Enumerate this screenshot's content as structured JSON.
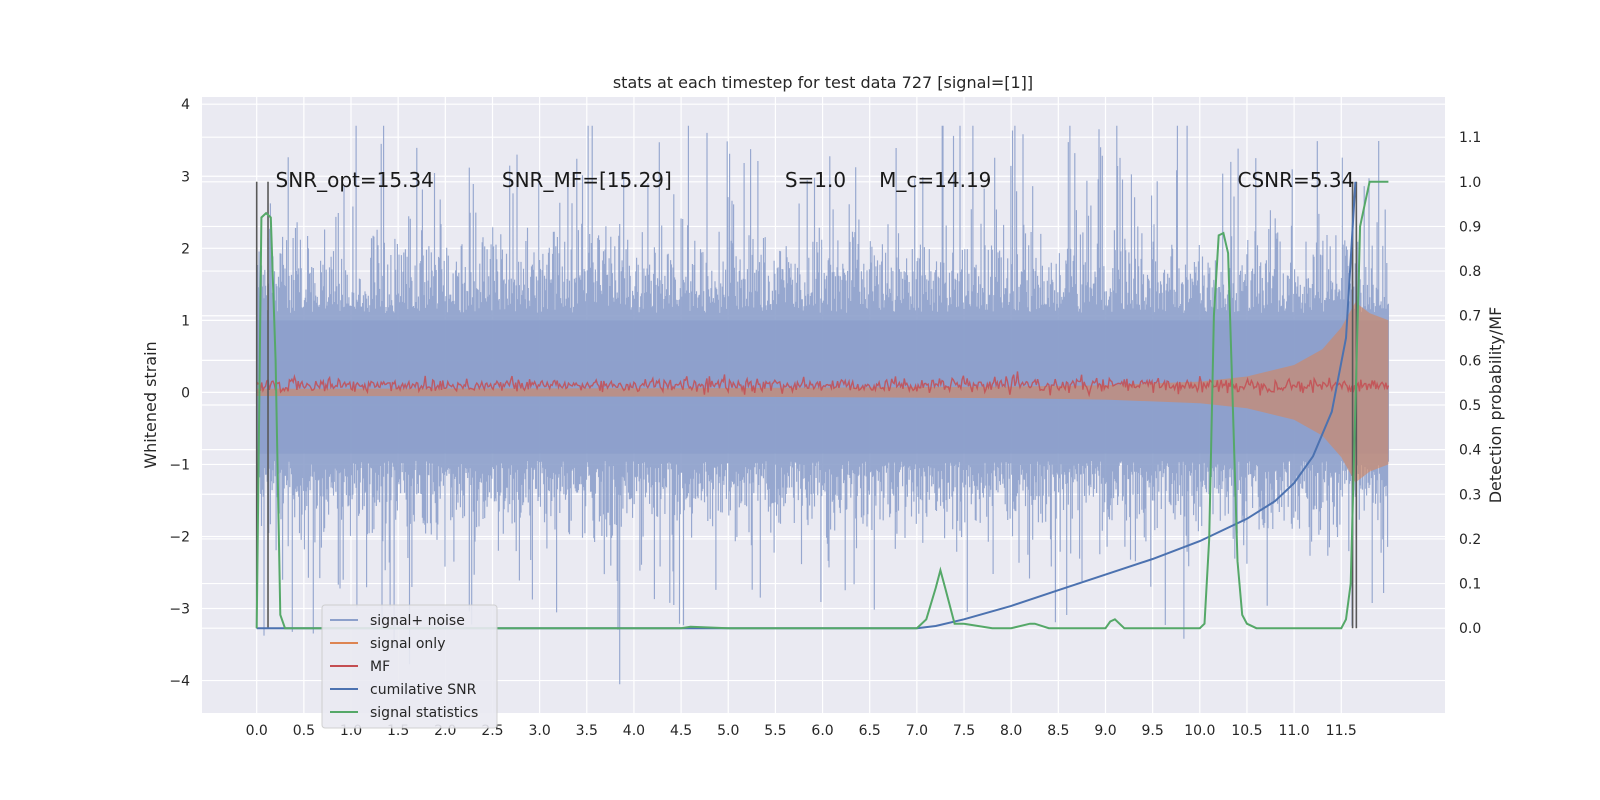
{
  "chart_data": {
    "type": "line",
    "title": "stats at each timestep for test data 727 [signal=[1]]",
    "xlabel": "",
    "ylabel": "Whitened strain",
    "y2label": "Detection probability/MF",
    "xlim": [
      -0.58,
      12.6
    ],
    "ylim": [
      -4.45,
      4.1
    ],
    "y2lim": [
      -0.19,
      1.19
    ],
    "x_ticks": [
      "0.0",
      "0.5",
      "1.0",
      "1.5",
      "2.0",
      "2.5",
      "3.0",
      "3.5",
      "4.0",
      "4.5",
      "5.0",
      "5.5",
      "6.0",
      "6.5",
      "7.0",
      "7.5",
      "8.0",
      "8.5",
      "9.0",
      "9.5",
      "10.0",
      "10.5",
      "11.0",
      "11.5"
    ],
    "y_ticks": [
      "4",
      "3",
      "2",
      "1",
      "0",
      "−1",
      "−2",
      "−3",
      "−4"
    ],
    "y2_ticks": [
      "1.1",
      "1.0",
      "0.9",
      "0.8",
      "0.7",
      "0.6",
      "0.5",
      "0.4",
      "0.3",
      "0.2",
      "0.1",
      "0.0"
    ],
    "grid": true,
    "legend_position": "lower-left",
    "colors": {
      "signal_noise": "#8da0cb",
      "signal_only": "#dd8452",
      "mf": "#c44e52",
      "cumulative_snr": "#4c72b0",
      "signal_statistics": "#55a868",
      "marker_lines": "#595959",
      "plot_bg": "#eaeaf2"
    },
    "annotations": [
      {
        "text": "SNR_opt=15.34",
        "x": 0.2,
        "y2": 1.0
      },
      {
        "text": "SNR_MF=[15.29]",
        "x": 2.6,
        "y2": 1.0
      },
      {
        "text": "S=1.0",
        "x": 5.6,
        "y2": 1.0
      },
      {
        "text": "M_c=14.19",
        "x": 6.6,
        "y2": 1.0
      },
      {
        "text": "CSNR=5.34",
        "x": 10.4,
        "y2": 1.0
      }
    ],
    "series": [
      {
        "name": "signal+ noise",
        "kind": "noise-band",
        "x_range": [
          0.0,
          12.0
        ],
        "y_typical": [
          -1.6,
          2.1
        ],
        "y_extreme": [
          -4.1,
          3.7
        ]
      },
      {
        "name": "signal only",
        "kind": "chirp-envelope",
        "x_range": [
          0.0,
          12.0
        ],
        "points": [
          [
            0.0,
            0.05
          ],
          [
            5.0,
            0.06
          ],
          [
            8.0,
            0.08
          ],
          [
            9.0,
            0.1
          ],
          [
            10.0,
            0.15
          ],
          [
            10.5,
            0.22
          ],
          [
            11.0,
            0.38
          ],
          [
            11.3,
            0.6
          ],
          [
            11.5,
            0.9
          ],
          [
            11.65,
            1.25
          ],
          [
            11.8,
            1.1
          ],
          [
            12.0,
            1.0
          ]
        ]
      },
      {
        "name": "MF",
        "kind": "noisy-band",
        "x_range": [
          0.0,
          12.0
        ],
        "y_center": 0.1,
        "amplitude": 0.1
      },
      {
        "name": "cumilative SNR",
        "x": [
          0.0,
          7.0,
          7.2,
          7.5,
          8.0,
          8.5,
          9.0,
          9.5,
          10.0,
          10.5,
          10.8,
          11.0,
          11.2,
          11.4,
          11.55,
          11.65
        ],
        "y2": [
          0.0,
          0.0,
          0.005,
          0.02,
          0.05,
          0.085,
          0.12,
          0.155,
          0.195,
          0.245,
          0.285,
          0.325,
          0.385,
          0.485,
          0.65,
          1.0
        ]
      },
      {
        "name": "signal statistics",
        "x": [
          0.0,
          0.05,
          0.1,
          0.15,
          0.2,
          0.25,
          0.3,
          0.4,
          1.0,
          4.5,
          4.6,
          5.0,
          7.0,
          7.1,
          7.2,
          7.25,
          7.3,
          7.4,
          7.5,
          7.8,
          8.0,
          8.2,
          8.25,
          8.4,
          9.0,
          9.05,
          9.1,
          9.2,
          9.3,
          10.0,
          10.05,
          10.1,
          10.15,
          10.2,
          10.25,
          10.3,
          10.35,
          10.4,
          10.45,
          10.5,
          10.6,
          11.0,
          11.5,
          11.55,
          11.6,
          11.65,
          11.7,
          11.75,
          11.8,
          11.9,
          12.0
        ],
        "y2": [
          0.0,
          0.92,
          0.93,
          0.92,
          0.6,
          0.03,
          0.0,
          0.0,
          0.0,
          0.0,
          0.003,
          0.0,
          0.0,
          0.02,
          0.09,
          0.13,
          0.09,
          0.01,
          0.01,
          0.0,
          0.0,
          0.01,
          0.01,
          0.0,
          0.0,
          0.015,
          0.02,
          0.0,
          0.0,
          0.0,
          0.01,
          0.2,
          0.7,
          0.88,
          0.885,
          0.84,
          0.5,
          0.15,
          0.03,
          0.01,
          0.0,
          0.0,
          0.0,
          0.02,
          0.1,
          0.5,
          0.9,
          0.95,
          1.0,
          1.0,
          1.0
        ]
      },
      {
        "name": "marker lines",
        "kind": "vertical",
        "x": [
          0.0,
          0.12,
          11.62,
          11.66
        ],
        "y2_range": [
          0.0,
          1.0
        ]
      }
    ]
  },
  "legend": {
    "items": [
      {
        "label": "signal+ noise",
        "color": "#8da0cb"
      },
      {
        "label": "signal only",
        "color": "#dd8452"
      },
      {
        "label": "MF",
        "color": "#c44e52"
      },
      {
        "label": "cumilative SNR",
        "color": "#4c72b0"
      },
      {
        "label": "signal statistics",
        "color": "#55a868"
      }
    ]
  }
}
